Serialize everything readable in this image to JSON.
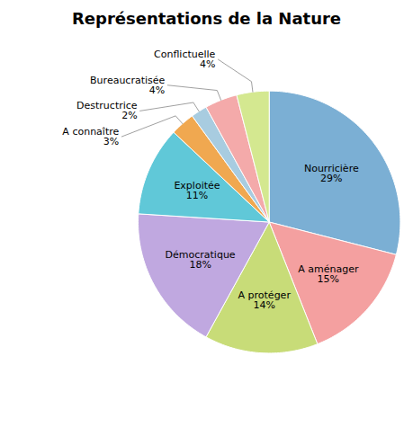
{
  "chart_data": {
    "type": "pie",
    "title": "Représentations de la Nature",
    "categories": [
      "Nourricière",
      "A aménager",
      "A protéger",
      "Démocratique",
      "Exploitée",
      "A connaître",
      "Destructrice",
      "Bureaucratisée",
      "Conflictuelle"
    ],
    "values": [
      29,
      15,
      14,
      18,
      11,
      3,
      2,
      4,
      4
    ],
    "value_labels": [
      "29%",
      "15%",
      "14%",
      "18%",
      "11%",
      "3%",
      "2%",
      "4%",
      "4%"
    ],
    "colors": [
      "#7BAFD4",
      "#F4A0A0",
      "#C8DC78",
      "#C0A8E0",
      "#60C8D8",
      "#F0A850",
      "#A8CCE0",
      "#F4AAAA",
      "#D4E890"
    ],
    "data_labels": true
  }
}
